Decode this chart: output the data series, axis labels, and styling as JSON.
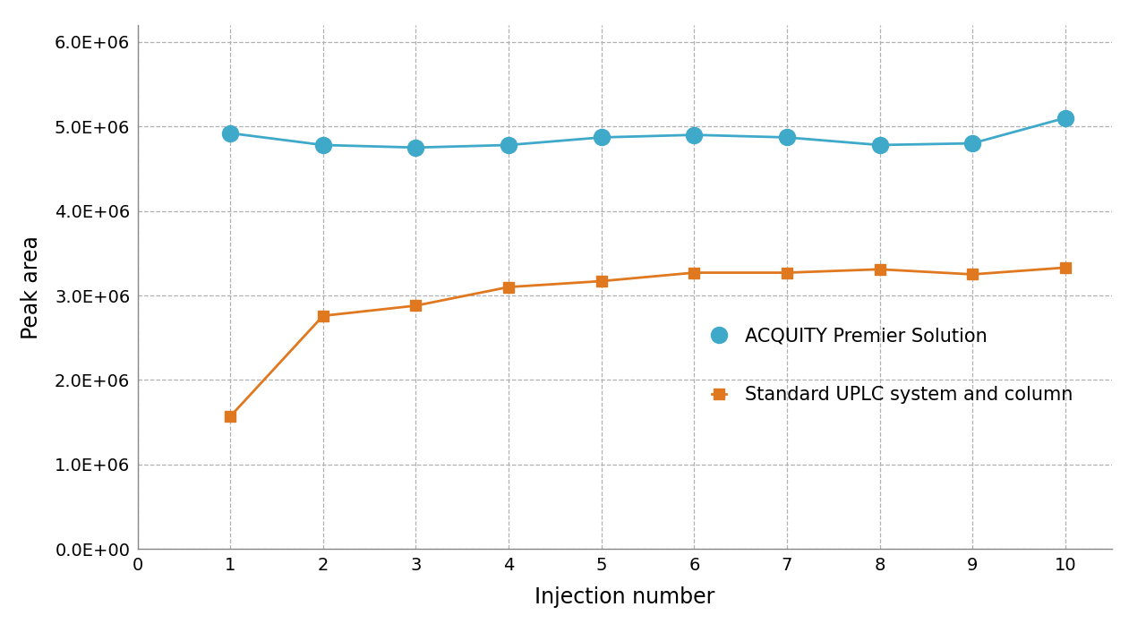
{
  "injections": [
    1,
    2,
    3,
    4,
    5,
    6,
    7,
    8,
    9,
    10
  ],
  "acquity_premier": [
    4920000,
    4780000,
    4750000,
    4780000,
    4870000,
    4900000,
    4870000,
    4780000,
    4800000,
    5100000
  ],
  "standard_uplc": [
    1570000,
    2760000,
    2880000,
    3100000,
    3170000,
    3270000,
    3270000,
    3310000,
    3250000,
    3330000
  ],
  "acquity_color": "#3fa9c9",
  "uplc_color": "#e07820",
  "xlabel": "Injection number",
  "ylabel": "Peak area",
  "xlim": [
    0,
    10.5
  ],
  "ylim": [
    0,
    6200000
  ],
  "yticks": [
    0,
    1000000,
    2000000,
    3000000,
    4000000,
    5000000,
    6000000
  ],
  "ytick_labels": [
    "0.0E+00",
    "1.0E+06",
    "2.0E+06",
    "3.0E+06",
    "4.0E+06",
    "5.0E+06",
    "6.0E+06"
  ],
  "xticks": [
    0,
    1,
    2,
    3,
    4,
    5,
    6,
    7,
    8,
    9,
    10
  ],
  "legend_acquity": "ACQUITY Premier Solution",
  "legend_uplc": "Standard UPLC system and column",
  "background_color": "#ffffff",
  "grid_color": "#b0b0b0",
  "line_width": 2.0,
  "marker_size_acquity": 13,
  "marker_size_uplc": 9,
  "label_fontsize": 17,
  "tick_fontsize": 14,
  "legend_fontsize": 15
}
